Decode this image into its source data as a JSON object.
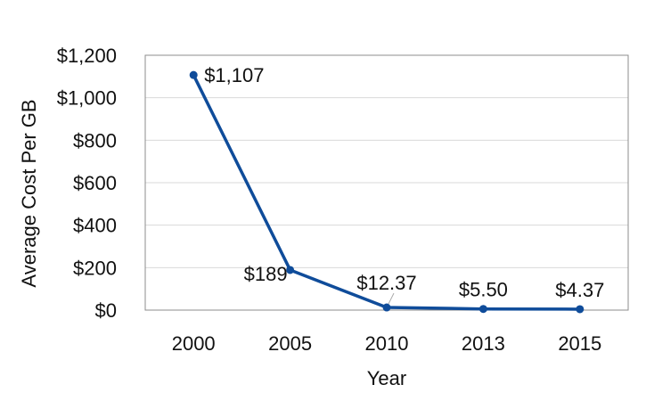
{
  "chart_data": {
    "type": "line",
    "categories": [
      "2000",
      "2005",
      "2010",
      "2013",
      "2015"
    ],
    "series": [
      {
        "values": [
          1107,
          189,
          12.37,
          5.5,
          4.37
        ],
        "data_labels": [
          "$1,107",
          "$189",
          "$12.37",
          "$5.50",
          "$4.37"
        ],
        "color": "#0f4c9a"
      }
    ],
    "title": "",
    "xlabel": "Year",
    "ylabel": "Average Cost Per GB",
    "ylim": [
      0,
      1200
    ],
    "yticks": [
      0,
      200,
      400,
      600,
      800,
      1000,
      1200
    ],
    "ytick_labels": [
      "$0",
      "$200",
      "$400",
      "$600",
      "$800",
      "$1,000",
      "$1,200"
    ],
    "grid": true,
    "gridline_color": "#d9d9d9",
    "legend": "none"
  }
}
